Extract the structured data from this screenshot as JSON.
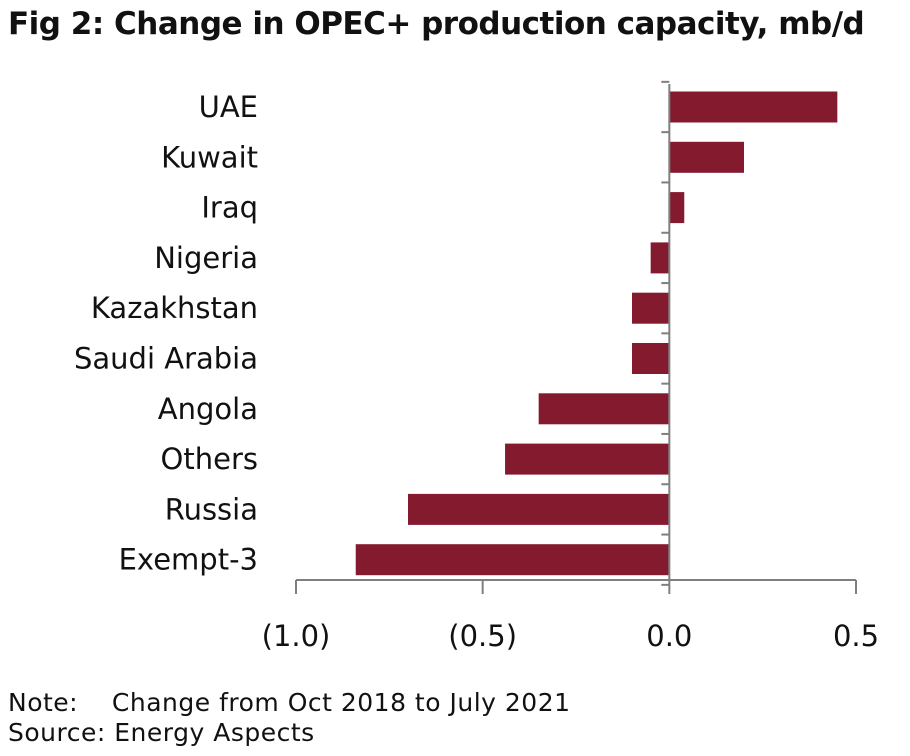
{
  "title": "Fig 2: Change in OPEC+ production capacity, mb/d",
  "note_label": "Note:",
  "note_text": "Change from Oct 2018 to July 2021",
  "source_label": "Source:",
  "source_text": "Energy Aspects",
  "colors": {
    "bar": "#841a2e",
    "axis": "#7f7f7f",
    "text": "#111111"
  },
  "chart_data": {
    "type": "bar",
    "orientation": "horizontal",
    "title": "Fig 2: Change in OPEC+ production capacity, mb/d",
    "categories": [
      "UAE",
      "Kuwait",
      "Iraq",
      "Nigeria",
      "Kazakhstan",
      "Saudi Arabia",
      "Angola",
      "Others",
      "Russia",
      "Exempt-3"
    ],
    "values": [
      0.45,
      0.2,
      0.04,
      -0.05,
      -0.1,
      -0.1,
      -0.35,
      -0.44,
      -0.7,
      -0.84
    ],
    "xlim": [
      -1.0,
      0.5
    ],
    "xticks": [
      -1.0,
      -0.5,
      0.0,
      0.5
    ],
    "xtick_labels": [
      "(1.0)",
      "(0.5)",
      "0.0",
      "0.5"
    ],
    "xlabel": "",
    "ylabel": "",
    "grid": false,
    "legend": "none"
  }
}
